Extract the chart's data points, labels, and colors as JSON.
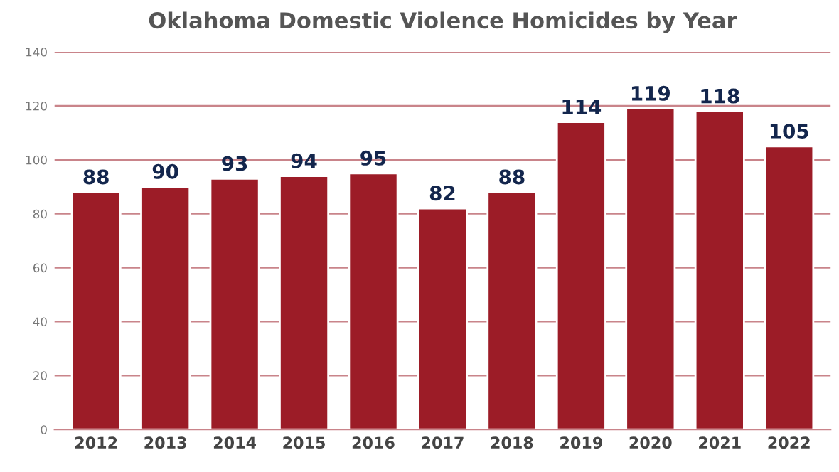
{
  "chart_data": {
    "type": "bar",
    "title": "Oklahoma Domestic Violence Homicides by Year",
    "categories": [
      "2012",
      "2013",
      "2014",
      "2015",
      "2016",
      "2017",
      "2018",
      "2019",
      "2020",
      "2021",
      "2022"
    ],
    "values": [
      88,
      90,
      93,
      94,
      95,
      82,
      88,
      114,
      119,
      118,
      105
    ],
    "color": "#9c1c27",
    "ylim": [
      0,
      140
    ],
    "yticks": [
      0,
      20,
      40,
      60,
      80,
      100,
      120,
      140
    ],
    "grid": "y",
    "data_labels": true
  }
}
